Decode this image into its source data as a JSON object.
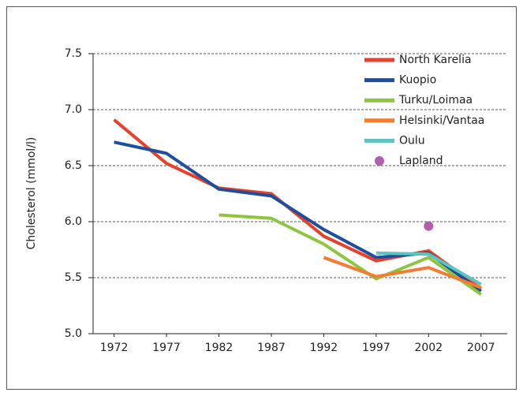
{
  "chart_data": {
    "type": "line",
    "ylabel": "Cholesterol (mmol/l)",
    "x": [
      1972,
      1977,
      1982,
      1987,
      1992,
      1997,
      2002,
      2007
    ],
    "xlim": [
      1970,
      2009.5
    ],
    "xticks": [
      1972,
      1977,
      1982,
      1987,
      1992,
      1997,
      2002,
      2007
    ],
    "ylim": [
      5,
      7.5
    ],
    "yticks": [
      {
        "value": 5,
        "label": "5.0"
      },
      5.5,
      {
        "value": 6,
        "label": "6.0"
      },
      6.5,
      {
        "value": 7,
        "label": "7.0"
      },
      7.5
    ],
    "grid": true,
    "legend": "upper right",
    "series": [
      {
        "name": "North Karelia",
        "color": "#e8402a",
        "values": [
          6.91,
          6.52,
          6.3,
          6.25,
          5.87,
          5.65,
          5.74,
          5.4
        ]
      },
      {
        "name": "Kuopio",
        "color": "#1f4e9c",
        "values": [
          6.71,
          6.61,
          6.29,
          6.23,
          5.93,
          5.68,
          5.72,
          5.38
        ]
      },
      {
        "name": "Turku/Loimaa",
        "color": "#8cc63f",
        "values": [
          null,
          null,
          6.06,
          6.03,
          5.8,
          5.49,
          5.68,
          5.35
        ]
      },
      {
        "name": "Helsinki/Vantaa",
        "color": "#f47c30",
        "values": [
          null,
          null,
          null,
          null,
          5.68,
          5.51,
          5.59,
          5.41
        ]
      },
      {
        "name": "Oulu",
        "color": "#5bc4c0",
        "values": [
          null,
          null,
          null,
          null,
          null,
          5.72,
          5.71,
          5.44
        ]
      },
      {
        "name": "Lapland",
        "color": "#b05fb0",
        "marker": true,
        "values": [
          null,
          null,
          null,
          null,
          null,
          null,
          5.96,
          null
        ]
      }
    ]
  }
}
